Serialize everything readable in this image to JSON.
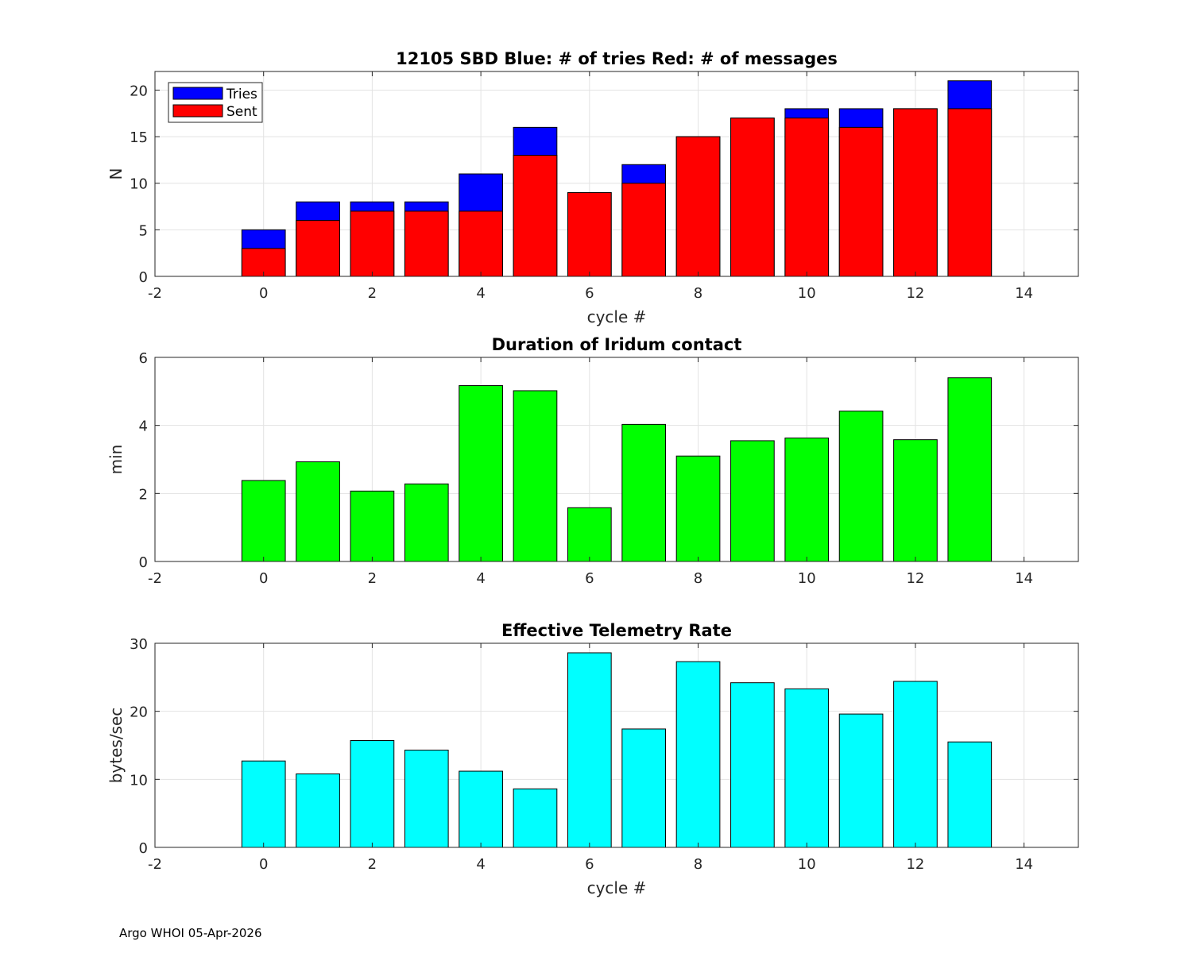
{
  "footer": "Argo WHOI 05-Apr-2026",
  "chart_data": [
    {
      "type": "bar",
      "title": "12105 SBD  Blue: # of tries   Red: # of messages",
      "xlabel": "cycle #",
      "ylabel": "N",
      "xlim": [
        -2,
        15
      ],
      "ylim": [
        0,
        22
      ],
      "xticks": [
        "-2",
        "0",
        "2",
        "4",
        "6",
        "8",
        "10",
        "12",
        "14"
      ],
      "yticks": [
        "0",
        "5",
        "10",
        "15",
        "20"
      ],
      "grid": true,
      "legend_position": "top-left",
      "categories": [
        0,
        1,
        2,
        3,
        4,
        5,
        6,
        7,
        8,
        9,
        10,
        11,
        12,
        13
      ],
      "series": [
        {
          "name": "Tries",
          "color": "#0000ff",
          "values": [
            5,
            8,
            8,
            8,
            11,
            16,
            9,
            12,
            15,
            17,
            18,
            18,
            18,
            21
          ]
        },
        {
          "name": "Sent",
          "color": "#ff0000",
          "values": [
            3,
            6,
            7,
            7,
            7,
            13,
            9,
            10,
            15,
            17,
            17,
            16,
            18,
            18
          ]
        }
      ]
    },
    {
      "type": "bar",
      "title": "Duration of Iridum contact",
      "xlabel": "",
      "ylabel": "min",
      "xlim": [
        -2,
        15
      ],
      "ylim": [
        0,
        6
      ],
      "xticks": [
        "-2",
        "0",
        "2",
        "4",
        "6",
        "8",
        "10",
        "12",
        "14"
      ],
      "yticks": [
        "0",
        "2",
        "4",
        "6"
      ],
      "grid": true,
      "categories": [
        0,
        1,
        2,
        3,
        4,
        5,
        6,
        7,
        8,
        9,
        10,
        11,
        12,
        13
      ],
      "series": [
        {
          "name": "Duration",
          "color": "#00ff00",
          "values": [
            2.38,
            2.93,
            2.07,
            2.28,
            5.17,
            5.02,
            1.58,
            4.03,
            3.1,
            3.55,
            3.63,
            4.42,
            3.58,
            5.4
          ]
        }
      ]
    },
    {
      "type": "bar",
      "title": "Effective Telemetry Rate",
      "xlabel": "cycle #",
      "ylabel": "bytes/sec",
      "xlim": [
        -2,
        15
      ],
      "ylim": [
        0,
        30
      ],
      "xticks": [
        "-2",
        "0",
        "2",
        "4",
        "6",
        "8",
        "10",
        "12",
        "14"
      ],
      "yticks": [
        "0",
        "10",
        "20",
        "30"
      ],
      "grid": true,
      "categories": [
        0,
        1,
        2,
        3,
        4,
        5,
        6,
        7,
        8,
        9,
        10,
        11,
        12,
        13
      ],
      "series": [
        {
          "name": "Rate",
          "color": "#00ffff",
          "values": [
            12.7,
            10.8,
            15.7,
            14.3,
            11.2,
            8.6,
            28.6,
            17.4,
            27.3,
            24.2,
            23.3,
            19.6,
            24.4,
            15.5
          ]
        }
      ]
    }
  ]
}
